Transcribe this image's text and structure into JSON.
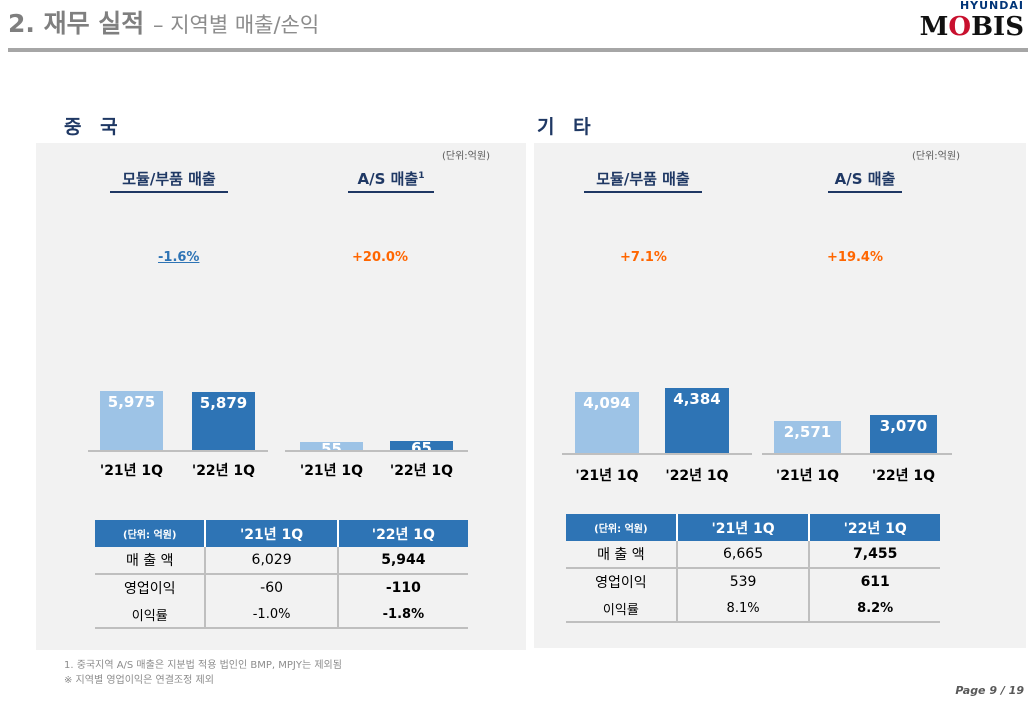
{
  "header": {
    "title": "2. 재무 실적",
    "subtitle": "– 지역별 매출/손익",
    "logo_top": "HYUNDAI",
    "logo_bottom": "MOBIS"
  },
  "unit_label": "(단위:억원)",
  "colors": {
    "prev": "#9dc3e6",
    "curr": "#2e74b5",
    "negative_growth": "#2e74b5",
    "positive_growth": "#ff6600",
    "header": "#2e74b5"
  },
  "regions": [
    {
      "name": "중 국",
      "table": {
        "headers": [
          "(단위: 억원)",
          "'21년 1Q",
          "'22년 1Q"
        ],
        "rows": [
          [
            "매 출 액",
            "6,029",
            "5,944"
          ],
          [
            "영업이익",
            "-60",
            "-110"
          ],
          [
            "이익률",
            "-1.0%",
            "-1.8%"
          ]
        ]
      }
    },
    {
      "name": "기 타",
      "table": {
        "headers": [
          "(단위: 억원)",
          "'21년 1Q",
          "'22년 1Q"
        ],
        "rows": [
          [
            "매 출 액",
            "6,665",
            "7,455"
          ],
          [
            "영업이익",
            "539",
            "611"
          ],
          [
            "이익률",
            "8.1%",
            "8.2%"
          ]
        ]
      }
    }
  ],
  "chart_data": [
    {
      "type": "bar",
      "region": "중 국",
      "title": "모듈/부품 매출",
      "growth": "-1.6%",
      "categories": [
        "'21년 1Q",
        "'22년 1Q"
      ],
      "values": [
        5975,
        5879
      ],
      "labels": [
        "5,975",
        "5,879"
      ]
    },
    {
      "type": "bar",
      "region": "중 국",
      "title": "A/S 매출",
      "title_sup": "1",
      "growth": "+20.0%",
      "categories": [
        "'21년 1Q",
        "'22년 1Q"
      ],
      "values": [
        55,
        65
      ],
      "labels": [
        "55",
        "65"
      ]
    },
    {
      "type": "bar",
      "region": "기 타",
      "title": "모듈/부품 매출",
      "growth": "+7.1%",
      "categories": [
        "'21년 1Q",
        "'22년 1Q"
      ],
      "values": [
        4094,
        4384
      ],
      "labels": [
        "4,094",
        "4,384"
      ]
    },
    {
      "type": "bar",
      "region": "기 타",
      "title": "A/S 매출",
      "growth": "+19.4%",
      "categories": [
        "'21년 1Q",
        "'22년 1Q"
      ],
      "values": [
        2571,
        3070
      ],
      "labels": [
        "2,571",
        "3,070"
      ]
    }
  ],
  "footnotes": [
    "1. 중국지역 A/S 매출은 지분법 적용 법인인 BMP, MPJY는 제외됨",
    "※ 지역별 영업이익은 연결조정 제외"
  ],
  "page": "Page 9 / 19"
}
